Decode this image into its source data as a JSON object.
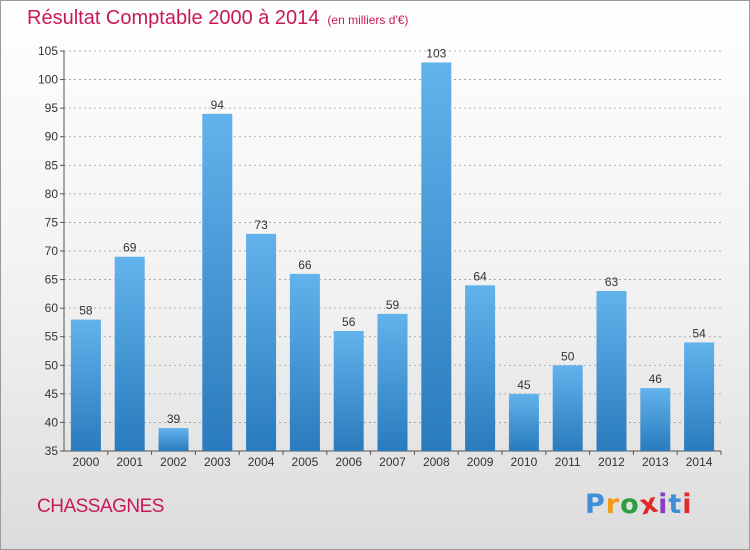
{
  "header": {
    "title": "Résultat Comptable 2000 à 2014",
    "subtitle": "(en milliers d'€)"
  },
  "footer": {
    "commune": "CHASSAGNES",
    "brand": "Proxiti"
  },
  "colors": {
    "title": "#c8185a",
    "bar_light": "#62b2ec",
    "bar_dark": "#2a7bbd",
    "grid": "#9a9a9a"
  },
  "chart_data": {
    "type": "bar",
    "title": "Résultat Comptable 2000 à 2014",
    "subtitle": "(en milliers d'€)",
    "xlabel": "",
    "ylabel": "",
    "categories": [
      "2000",
      "2001",
      "2002",
      "2003",
      "2004",
      "2005",
      "2006",
      "2007",
      "2008",
      "2009",
      "2010",
      "2011",
      "2012",
      "2013",
      "2014"
    ],
    "values": [
      58,
      69,
      39,
      94,
      73,
      66,
      56,
      59,
      103,
      64,
      45,
      50,
      63,
      46,
      54
    ],
    "ylim": [
      35,
      105
    ],
    "yticks": [
      35,
      40,
      45,
      50,
      55,
      60,
      65,
      70,
      75,
      80,
      85,
      90,
      95,
      100,
      105
    ],
    "grid": true,
    "data_labels": true
  }
}
